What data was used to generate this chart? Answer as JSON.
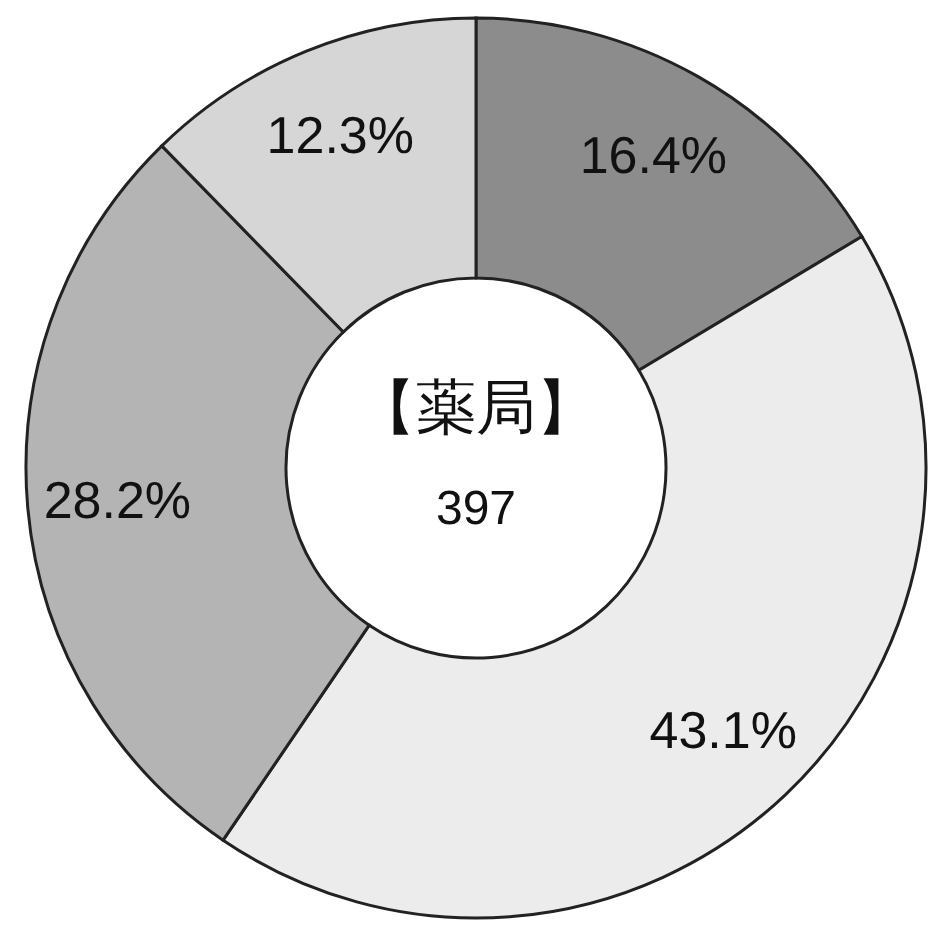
{
  "chart_data": {
    "type": "donut",
    "title": "【薬局】",
    "annotations": [
      "397"
    ],
    "categories": [
      null,
      null,
      null,
      null
    ],
    "values": [
      16.4,
      43.1,
      28.2,
      12.3
    ],
    "colors": [
      "#8c8c8c",
      "#ececec",
      "#b4b4b4",
      "#d6d6d6"
    ],
    "value_labels": [
      "16.4%",
      "43.1%",
      "28.2%",
      "12.3%"
    ]
  }
}
